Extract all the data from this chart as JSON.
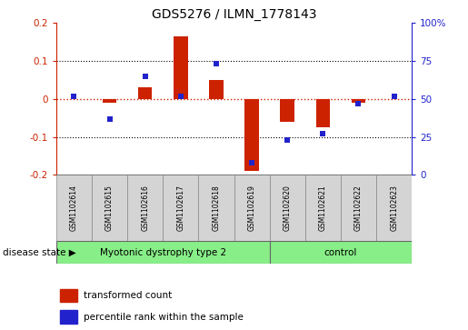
{
  "title": "GDS5276 / ILMN_1778143",
  "samples": [
    "GSM1102614",
    "GSM1102615",
    "GSM1102616",
    "GSM1102617",
    "GSM1102618",
    "GSM1102619",
    "GSM1102620",
    "GSM1102621",
    "GSM1102622",
    "GSM1102623"
  ],
  "red_values": [
    0.0,
    -0.01,
    0.03,
    0.165,
    0.05,
    -0.19,
    -0.06,
    -0.075,
    -0.01,
    0.0
  ],
  "blue_values_pct": [
    52,
    37,
    65,
    52,
    73,
    8,
    23,
    27,
    47,
    52
  ],
  "group_boundary": 6,
  "group1_label": "Myotonic dystrophy type 2",
  "group2_label": "control",
  "group_color": "#88ee88",
  "sample_box_color": "#d4d4d4",
  "ylim_left": [
    -0.2,
    0.2
  ],
  "ylim_right": [
    0,
    100
  ],
  "yticks_left": [
    -0.2,
    -0.1,
    0.0,
    0.1,
    0.2
  ],
  "yticks_right": [
    0,
    25,
    50,
    75,
    100
  ],
  "ytick_labels_left": [
    "-0.2",
    "-0.1",
    "0",
    "0.1",
    "0.2"
  ],
  "ytick_labels_right": [
    "0",
    "25",
    "50",
    "75",
    "100%"
  ],
  "dotted_lines": [
    -0.1,
    0.1
  ],
  "red_color": "#cc2200",
  "blue_color": "#2222cc",
  "bar_width": 0.4,
  "disease_state_label": "disease state",
  "legend_red": "transformed count",
  "legend_blue": "percentile rank within the sample",
  "title_fontsize": 10,
  "tick_fontsize": 7.5,
  "sample_fontsize": 5.5,
  "group_fontsize": 7.5,
  "legend_fontsize": 7.5
}
